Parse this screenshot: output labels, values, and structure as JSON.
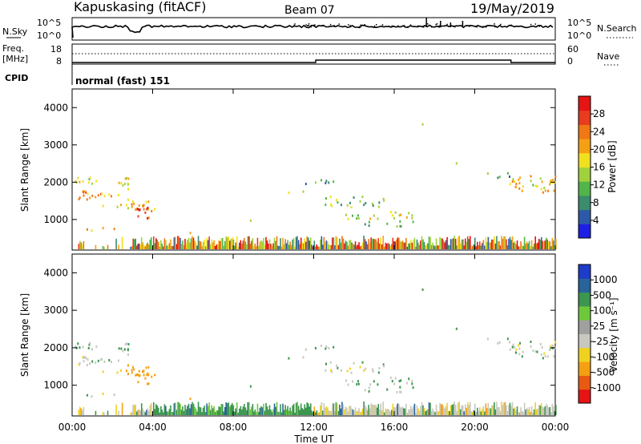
{
  "header": {
    "title": "Kapuskasing (fitACF)",
    "beam": "Beam 07",
    "date": "19/May/2019"
  },
  "nsky_panel": {
    "left_label": "N.Sky",
    "right_label": "N.Search",
    "left_ticks": [
      "10^5",
      "10^0"
    ],
    "right_ticks": [
      "10^5",
      "10^0"
    ]
  },
  "freq_panel": {
    "left_label_1": "Freq.",
    "left_label_2": "[MHz]",
    "right_label": "Nave",
    "left_ticks": [
      "18",
      "8"
    ],
    "right_ticks": [
      "60",
      "0"
    ]
  },
  "cpid_panel": {
    "label": "CPID",
    "mode": "normal (fast) 151"
  },
  "colors": {
    "power_scale": [
      "#1e1ee6",
      "#2d5aa8",
      "#3c8c6e",
      "#52b44a",
      "#a0d23c",
      "#f0e11e",
      "#f5a014",
      "#f07814",
      "#e83c1e",
      "#e61414"
    ],
    "velocity_scale": [
      "#1e3cc8",
      "#28649b",
      "#3c9650",
      "#6ec83c",
      "#a0a0a0",
      "#c8c8c0",
      "#f0d21e",
      "#f5a014",
      "#e85a14",
      "#e61414"
    ]
  },
  "chart_data": [
    {
      "type": "heatmap",
      "panel": "power",
      "ylabel": "Slant Range [km]",
      "y_ticks": [
        "1000",
        "2000",
        "3000",
        "4000"
      ],
      "ylim": [
        180,
        4500
      ],
      "x_ticks": [
        "00:00",
        "04:00",
        "08:00",
        "12:00",
        "16:00",
        "20:00",
        "00:00"
      ],
      "xlim_hours": [
        0,
        24
      ],
      "colorbar_label": "Power [dB]",
      "colorbar_ticks": [
        "4",
        "8",
        "12",
        "16",
        "20",
        "24",
        "28"
      ],
      "color_range": [
        0,
        30
      ]
    },
    {
      "type": "heatmap",
      "panel": "velocity",
      "ylabel": "Slant Range [km]",
      "y_ticks": [
        "1000",
        "2000",
        "3000",
        "4000"
      ],
      "ylim": [
        180,
        4500
      ],
      "x_ticks": [
        "00:00",
        "04:00",
        "08:00",
        "12:00",
        "16:00",
        "20:00",
        "00:00"
      ],
      "xlim_hours": [
        0,
        24
      ],
      "xlabel": "Time UT",
      "colorbar_label": "Velocity [m s⁻¹]",
      "colorbar_ticks": [
        "1000",
        "500",
        "100",
        "25",
        "-25",
        "-100",
        "-500",
        "-1000"
      ]
    }
  ]
}
